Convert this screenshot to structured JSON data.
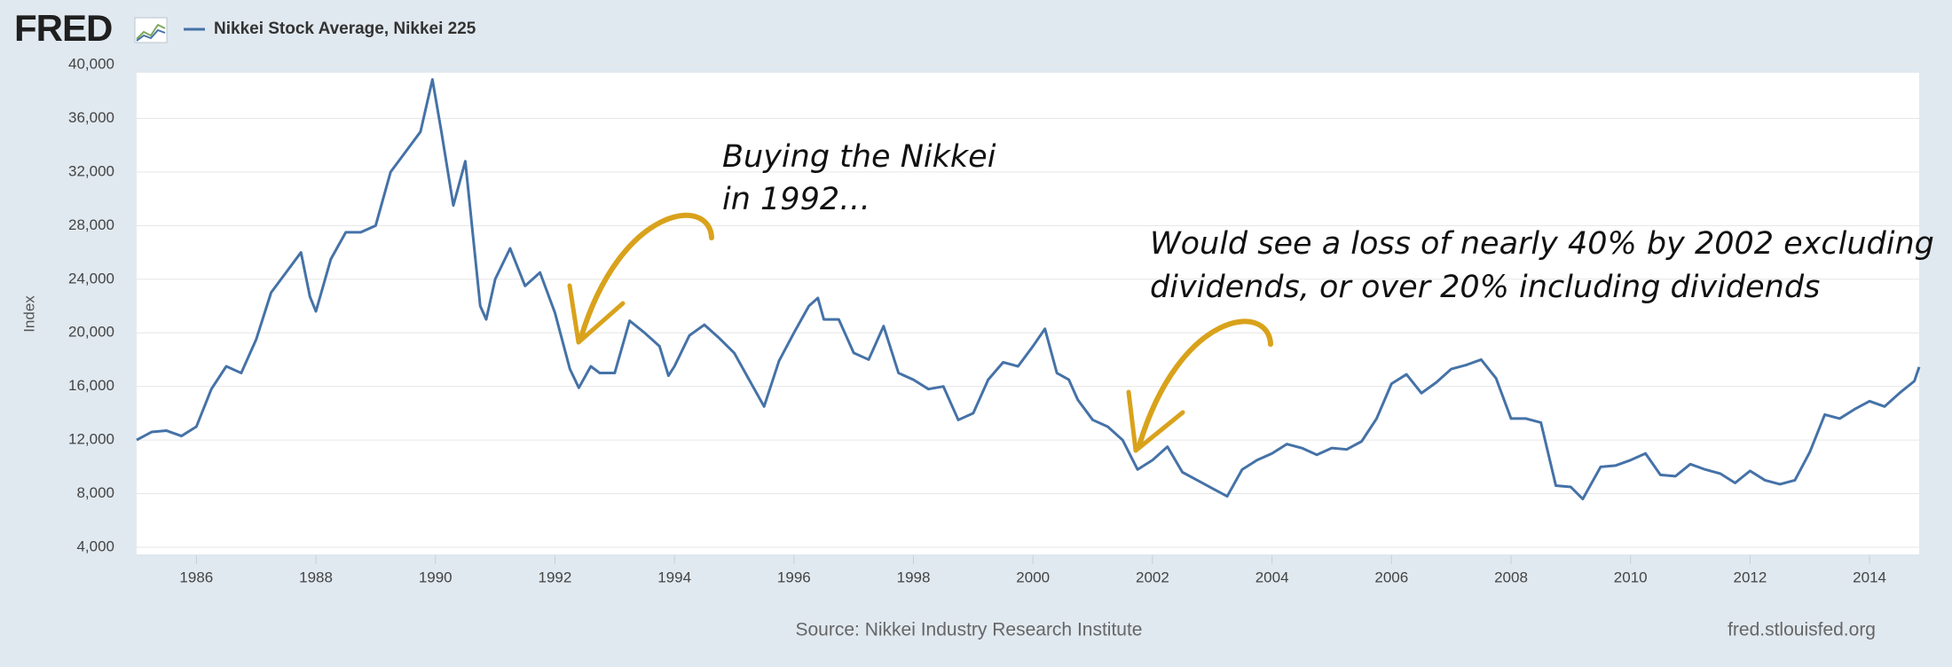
{
  "chart_data": {
    "type": "line",
    "logo": "FRED",
    "y_label": "Index",
    "source": "Source: Nikkei Industry Research Institute",
    "site": "fred.stlouisfed.org",
    "annotations": [
      [
        "Buying the Nikkei",
        "in 1992…"
      ],
      [
        "Would see a loss of nearly 40% by 2002 excluding",
        "dividends, or over 20% including dividends"
      ]
    ],
    "xlim": [
      1985,
      2014.83
    ],
    "xticks": [
      1986,
      1988,
      1990,
      1992,
      1994,
      1996,
      1998,
      2000,
      2002,
      2004,
      2006,
      2008,
      2010,
      2012,
      2014
    ],
    "ylim": [
      4000,
      40000
    ],
    "yticks": [
      {
        "value": 4000,
        "label": "4,000"
      },
      {
        "value": 8000,
        "label": "8,000"
      },
      {
        "value": 12000,
        "label": "12,000"
      },
      {
        "value": 16000,
        "label": "16,000"
      },
      {
        "value": 20000,
        "label": "20,000"
      },
      {
        "value": 24000,
        "label": "24,000"
      },
      {
        "value": 28000,
        "label": "28,000"
      },
      {
        "value": 32000,
        "label": "32,000"
      },
      {
        "value": 36000,
        "label": "36,000"
      },
      {
        "value": 40000,
        "label": "40,000"
      }
    ],
    "grid": true,
    "x": [
      1985.0,
      1985.25,
      1985.5,
      1985.75,
      1986.0,
      1986.25,
      1986.5,
      1986.75,
      1987.0,
      1987.25,
      1987.5,
      1987.75,
      1987.9,
      1988.0,
      1988.25,
      1988.5,
      1988.75,
      1989.0,
      1989.25,
      1989.5,
      1989.75,
      1989.95,
      1990.1,
      1990.3,
      1990.5,
      1990.75,
      1990.85,
      1991.0,
      1991.25,
      1991.5,
      1991.75,
      1992.0,
      1992.25,
      1992.4,
      1992.6,
      1992.75,
      1993.0,
      1993.25,
      1993.5,
      1993.75,
      1993.9,
      1994.0,
      1994.25,
      1994.5,
      1994.75,
      1995.0,
      1995.25,
      1995.5,
      1995.75,
      1996.0,
      1996.25,
      1996.4,
      1996.5,
      1996.75,
      1997.0,
      1997.25,
      1997.5,
      1997.75,
      1998.0,
      1998.25,
      1998.5,
      1998.75,
      1999.0,
      1999.25,
      1999.5,
      1999.75,
      2000.0,
      2000.2,
      2000.4,
      2000.6,
      2000.75,
      2001.0,
      2001.25,
      2001.5,
      2001.75,
      2002.0,
      2002.25,
      2002.5,
      2002.75,
      2003.0,
      2003.25,
      2003.5,
      2003.75,
      2004.0,
      2004.25,
      2004.5,
      2004.75,
      2005.0,
      2005.25,
      2005.5,
      2005.75,
      2006.0,
      2006.25,
      2006.5,
      2006.75,
      2007.0,
      2007.25,
      2007.5,
      2007.75,
      2008.0,
      2008.25,
      2008.5,
      2008.75,
      2009.0,
      2009.2,
      2009.5,
      2009.75,
      2010.0,
      2010.25,
      2010.5,
      2010.75,
      2011.0,
      2011.25,
      2011.5,
      2011.75,
      2012.0,
      2012.25,
      2012.5,
      2012.75,
      2013.0,
      2013.25,
      2013.5,
      2013.75,
      2014.0,
      2014.25,
      2014.5,
      2014.75,
      2014.83
    ],
    "series": [
      {
        "name": "Nikkei Stock Average, Nikkei 225",
        "color": "#4572a7",
        "values": [
          12000,
          12600,
          12700,
          12300,
          13000,
          15800,
          17500,
          17000,
          19500,
          23000,
          24500,
          26000,
          22700,
          21600,
          25500,
          27500,
          27500,
          28000,
          32000,
          33500,
          35000,
          38900,
          35000,
          29500,
          32800,
          22000,
          21000,
          24000,
          26300,
          23500,
          24500,
          21500,
          17300,
          15900,
          17500,
          17000,
          17000,
          20900,
          20000,
          19000,
          16800,
          17500,
          19800,
          20600,
          19600,
          18500,
          16500,
          14500,
          17900,
          20000,
          22000,
          22600,
          21000,
          21000,
          18500,
          18000,
          20500,
          17000,
          16500,
          15800,
          16000,
          13500,
          14000,
          16500,
          17800,
          17500,
          19000,
          20300,
          17000,
          16500,
          15000,
          13500,
          13000,
          12000,
          9800,
          10500,
          11500,
          9600,
          9000,
          8400,
          7800,
          9800,
          10500,
          11000,
          11700,
          11400,
          10900,
          11400,
          11300,
          11900,
          13600,
          16200,
          16900,
          15500,
          16300,
          17300,
          17600,
          18000,
          16600,
          13600,
          13600,
          13300,
          8600,
          8500,
          7600,
          10000,
          10100,
          10500,
          11000,
          9400,
          9300,
          10200,
          9800,
          9500,
          8800,
          9700,
          9000,
          8700,
          9000,
          11100,
          13900,
          13600,
          14300,
          14900,
          14500,
          15500,
          16400,
          17450
        ]
      }
    ]
  }
}
